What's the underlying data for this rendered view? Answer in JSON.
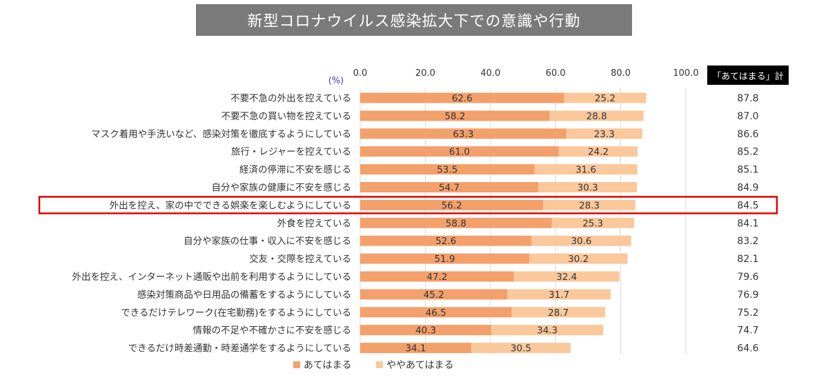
{
  "chart_data": {
    "type": "bar",
    "stacked": true,
    "orientation": "horizontal",
    "title": "新型コロナウイルス感染拡大下での意識や行動",
    "unit_label": "(%)",
    "xlim": [
      0,
      100
    ],
    "x_ticks": [
      "0.0",
      "20.0",
      "40.0",
      "60.0",
      "80.0",
      "100.0"
    ],
    "total_header": "「あてはまる」計",
    "categories": [
      "不要不急の外出を控えている",
      "不要不急の買い物を控えている",
      "マスク着用や手洗いなど、感染対策を徹底するようにしている",
      "旅行・レジャーを控えている",
      "経済の停滞に不安を感じる",
      "自分や家族の健康に不安を感じる",
      "外出を控え、家の中でできる娯楽を楽しむようにしている",
      "外食を控えている",
      "自分や家族の仕事・収入に不安を感じる",
      "交友・交際を控えている",
      "外出を控え、インターネット通販や出前を利用するようにしている",
      "感染対策商品や日用品の備蓄をするようにしている",
      "できるだけテレワーク(在宅勤務)をするようにしている",
      "情報の不足や不確かさに不安を感じる",
      "できるだけ時差通勤・時差通学をするようにしている"
    ],
    "series": [
      {
        "name": "あてはまる",
        "color": "#f4a06b",
        "values": [
          62.6,
          58.2,
          63.3,
          61.0,
          53.5,
          54.7,
          56.2,
          58.8,
          52.6,
          51.9,
          47.2,
          45.2,
          46.5,
          40.3,
          34.1
        ],
        "labels": [
          "62.6",
          "58.2",
          "63.3",
          "61.0",
          "53.5",
          "54.7",
          "56.2",
          "58.8",
          "52.6",
          "51.9",
          "47.2",
          "45.2",
          "46.5",
          "40.3",
          "34.1"
        ]
      },
      {
        "name": "ややあてはまる",
        "color": "#fac89a",
        "values": [
          25.2,
          28.8,
          23.3,
          24.2,
          31.6,
          30.3,
          28.3,
          25.3,
          30.6,
          30.2,
          32.4,
          31.7,
          28.7,
          34.3,
          30.5
        ],
        "labels": [
          "25.2",
          "28.8",
          "23.3",
          "24.2",
          "31.6",
          "30.3",
          "28.3",
          "25.3",
          "30.6",
          "30.2",
          "32.4",
          "31.7",
          "28.7",
          "34.3",
          "30.5"
        ]
      }
    ],
    "totals": [
      "87.8",
      "87.0",
      "86.6",
      "85.2",
      "85.1",
      "84.9",
      "84.5",
      "84.1",
      "83.2",
      "82.1",
      "79.6",
      "76.9",
      "75.2",
      "74.7",
      "64.6"
    ],
    "highlighted_category": "外出を控え、家の中でできる娯楽を楽しむようにしている",
    "highlight_color": "#e00000",
    "gridlines": true,
    "legend_position": "bottom-center"
  }
}
